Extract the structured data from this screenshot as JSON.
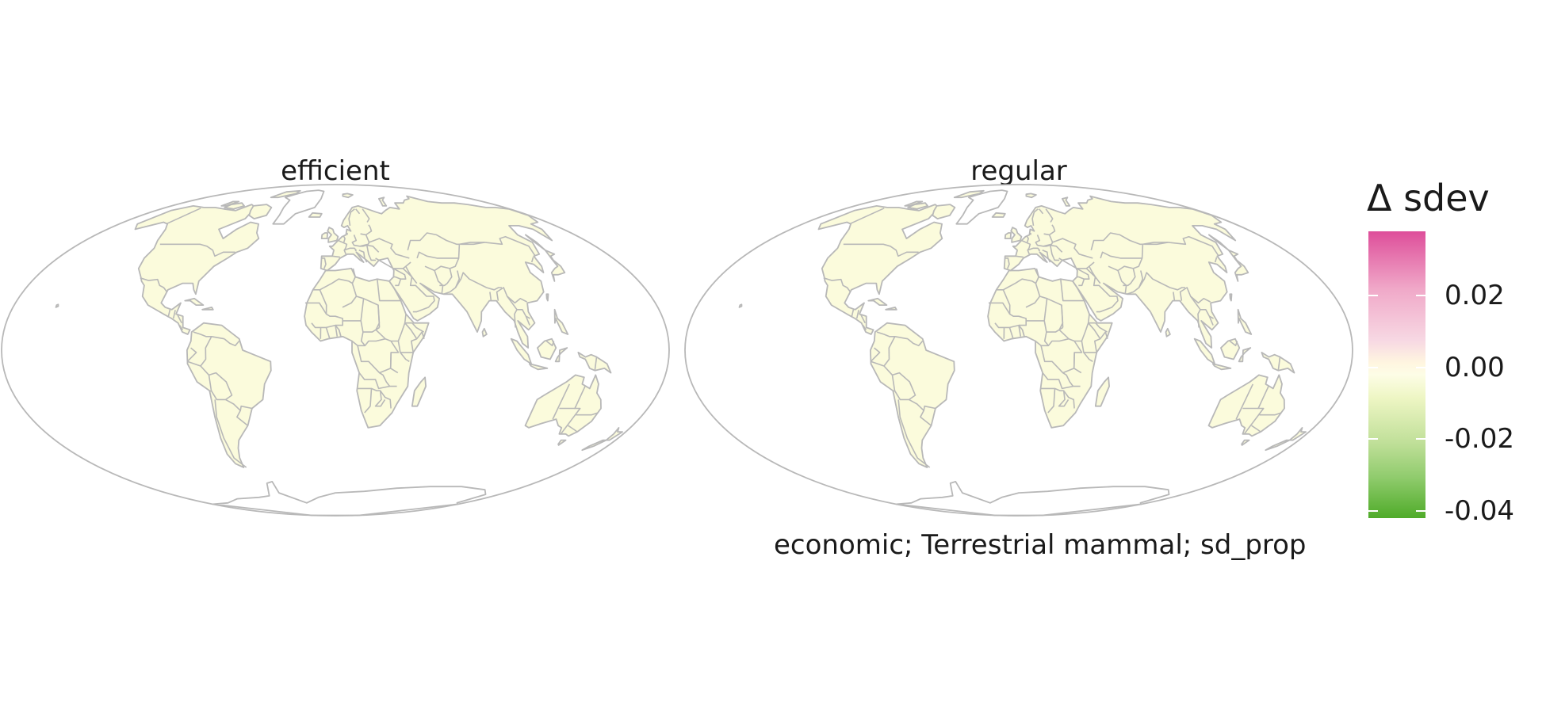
{
  "panels": [
    {
      "title": "efficient"
    },
    {
      "title": "regular"
    }
  ],
  "caption": "economic; Terrestrial mammal; sd_prop",
  "legend": {
    "title": "Δ sdev",
    "ticks": [
      {
        "label": "0.02",
        "value": 0.02
      },
      {
        "label": "0.00",
        "value": 0.0
      },
      {
        "label": "-0.02",
        "value": -0.02
      },
      {
        "label": "-0.04",
        "value": -0.04
      }
    ],
    "range": [
      -0.042,
      0.038
    ],
    "colors": {
      "high": "#de4e9a",
      "mid": "#fdfde6",
      "low": "#4fab29"
    }
  },
  "map": {
    "projection": "mollweide",
    "land_fill": "#fbfbdc",
    "border_color": "#b8b8b8",
    "outline_color": "#b8b8b8"
  }
}
